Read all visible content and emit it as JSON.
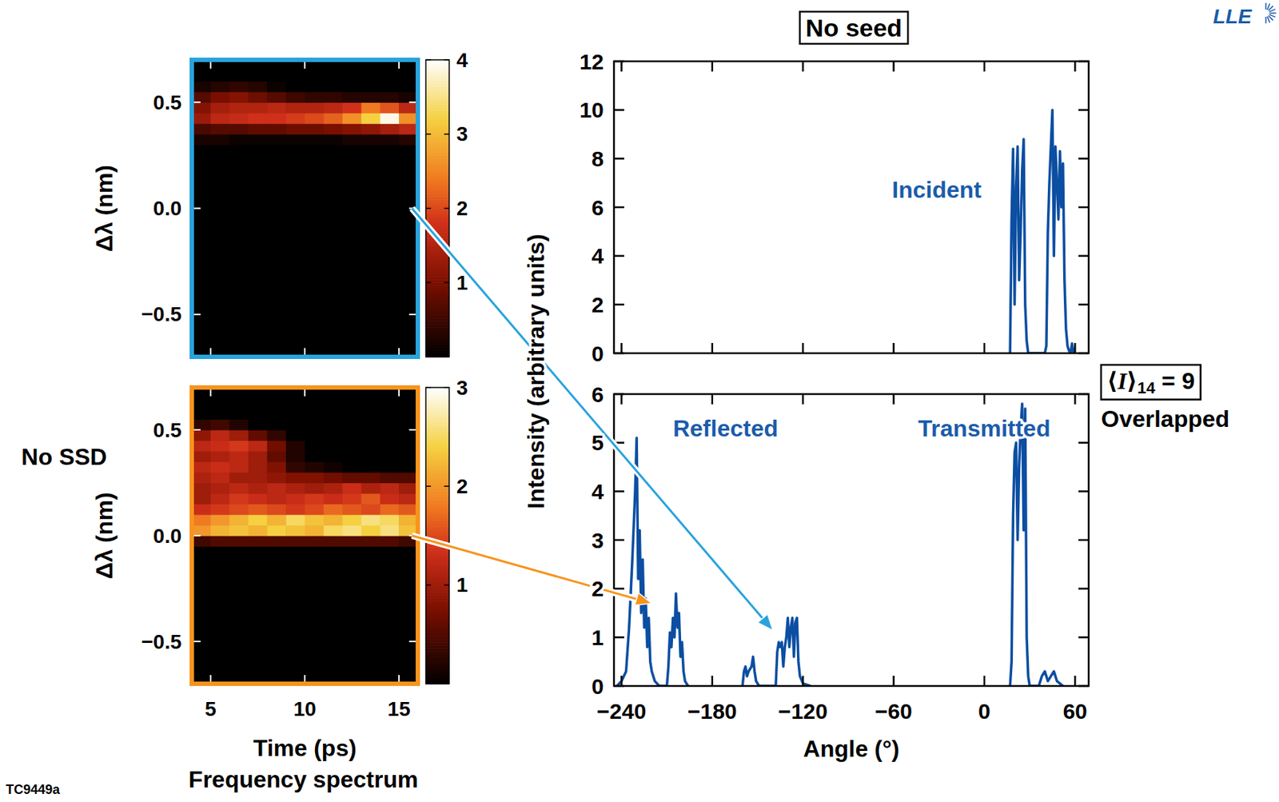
{
  "figure": {
    "title": "No seed",
    "logo": "LLE",
    "figure_id": "TC9449a",
    "row_label": "No SSD",
    "y_label": "Intensity (arbitrary units)",
    "caption": "Frequency spectrum",
    "average": {
      "open": "⟨",
      "symbol": "I",
      "close": "⟩",
      "subscript": "14",
      "value": " = 9"
    },
    "overlap_label": "Overlapped",
    "arrow_colors": [
      "#29a3dc",
      "#f7941d"
    ]
  },
  "chart_data": [
    {
      "type": "heatmap",
      "color": "#29a3dc",
      "tick_labels": "y",
      "ylabel": "Δλ (nm)",
      "x": [
        4,
        5,
        6,
        7,
        8,
        9,
        10,
        11,
        12,
        13,
        14,
        15,
        16
      ],
      "y": [
        -0.7,
        -0.65,
        -0.6,
        -0.55,
        -0.5,
        -0.45,
        -0.4,
        -0.35,
        -0.3,
        -0.25,
        -0.2,
        -0.15,
        -0.1,
        -0.05,
        0,
        0.05,
        0.1,
        0.15,
        0.2,
        0.25,
        0.3,
        0.35,
        0.4,
        0.45,
        0.5,
        0.55,
        0.6,
        0.65,
        0.7
      ],
      "xlim": [
        4,
        16
      ],
      "ylim": [
        -0.7,
        0.7
      ],
      "xticks": [
        5,
        10,
        15
      ],
      "yticks": [
        {
          "value": -0.5,
          "label": "−0.5"
        },
        {
          "value": 0,
          "label": "0.0"
        },
        {
          "value": 0.5,
          "label": "0.5"
        }
      ],
      "colorbar": {
        "range": [
          0,
          4
        ],
        "ticks": [
          1,
          2,
          3,
          4
        ]
      },
      "cells": [
        [
          0,
          0,
          0,
          0,
          0,
          0,
          0,
          0,
          0,
          0,
          0,
          0
        ],
        [
          0,
          0,
          0,
          0,
          0,
          0,
          0,
          0,
          0,
          0,
          0,
          0
        ],
        [
          0,
          0,
          0,
          0,
          0,
          0,
          0,
          0,
          0,
          0,
          0,
          0
        ],
        [
          0,
          0,
          0,
          0,
          0,
          0,
          0,
          0,
          0,
          0,
          0,
          0
        ],
        [
          0,
          0,
          0,
          0,
          0,
          0,
          0,
          0,
          0,
          0,
          0,
          0
        ],
        [
          0,
          0,
          0,
          0,
          0,
          0,
          0,
          0,
          0,
          0,
          0,
          0
        ],
        [
          0,
          0,
          0,
          0,
          0,
          0,
          0,
          0,
          0,
          0,
          0,
          0
        ],
        [
          0,
          0,
          0,
          0,
          0,
          0,
          0,
          0,
          0,
          0,
          0,
          0
        ],
        [
          0,
          0,
          0,
          0,
          0,
          0,
          0,
          0,
          0,
          0,
          0,
          0
        ],
        [
          0,
          0,
          0,
          0,
          0,
          0,
          0,
          0,
          0,
          0,
          0,
          0
        ],
        [
          0,
          0,
          0,
          0,
          0,
          0,
          0,
          0,
          0,
          0,
          0,
          0
        ],
        [
          0,
          0,
          0,
          0,
          0,
          0,
          0,
          0,
          0,
          0,
          0,
          0
        ],
        [
          0,
          0,
          0,
          0,
          0,
          0,
          0,
          0,
          0,
          0,
          0,
          0
        ],
        [
          0,
          0,
          0,
          0,
          0,
          0,
          0,
          0,
          0,
          0,
          0,
          0
        ],
        [
          0,
          0,
          0,
          0,
          0,
          0,
          0,
          0,
          0,
          0,
          0,
          0
        ],
        [
          0,
          0,
          0,
          0,
          0,
          0,
          0,
          0,
          0,
          0,
          0,
          0
        ],
        [
          0,
          0,
          0,
          0,
          0,
          0,
          0,
          0,
          0,
          0,
          0,
          0
        ],
        [
          0,
          0,
          0,
          0,
          0,
          0,
          0,
          0,
          0,
          0,
          0,
          0
        ],
        [
          0,
          0,
          0,
          0,
          0,
          0,
          0,
          0,
          0,
          0,
          0,
          0
        ],
        [
          0,
          0,
          0,
          0,
          0,
          0,
          0,
          0,
          0,
          0,
          0,
          0
        ],
        [
          0.2,
          0.2,
          0.1,
          0.1,
          0.1,
          0.1,
          0.1,
          0.1,
          0.2,
          0.2,
          0.2,
          0.3
        ],
        [
          0.6,
          0.7,
          0.7,
          0.8,
          0.8,
          0.9,
          0.9,
          1.0,
          1.1,
          1.2,
          1.4,
          1.6
        ],
        [
          1.3,
          1.6,
          1.7,
          1.8,
          1.8,
          1.9,
          2.0,
          2.2,
          2.6,
          3.2,
          3.9,
          2.6
        ],
        [
          1.1,
          1.4,
          1.5,
          1.5,
          1.6,
          1.5,
          1.5,
          1.6,
          1.8,
          2.4,
          2.1,
          1.6
        ],
        [
          0.7,
          1.0,
          1.1,
          0.9,
          0.7,
          0.5,
          0.4,
          0.4,
          0.3,
          0.3,
          0.3,
          0.2
        ],
        [
          0.2,
          0.3,
          0.4,
          0.3,
          0.1,
          0,
          0,
          0,
          0,
          0,
          0,
          0
        ],
        [
          0,
          0,
          0,
          0,
          0,
          0,
          0,
          0,
          0,
          0,
          0,
          0
        ],
        [
          0,
          0,
          0,
          0,
          0,
          0,
          0,
          0,
          0,
          0,
          0,
          0
        ]
      ]
    },
    {
      "type": "heatmap",
      "color": "#f7941d",
      "ylabel": "Δλ (nm)",
      "xlabel": "Time (ps)",
      "x": [
        4,
        5,
        6,
        7,
        8,
        9,
        10,
        11,
        12,
        13,
        14,
        15,
        16
      ],
      "y": [
        -0.7,
        -0.65,
        -0.6,
        -0.55,
        -0.5,
        -0.45,
        -0.4,
        -0.35,
        -0.3,
        -0.25,
        -0.2,
        -0.15,
        -0.1,
        -0.05,
        0,
        0.05,
        0.1,
        0.15,
        0.2,
        0.25,
        0.3,
        0.35,
        0.4,
        0.45,
        0.5,
        0.55,
        0.6,
        0.65,
        0.7
      ],
      "xlim": [
        4,
        16
      ],
      "ylim": [
        -0.7,
        0.7
      ],
      "xticks": [
        5,
        10,
        15
      ],
      "yticks": [
        {
          "value": -0.5,
          "label": "−0.5"
        },
        {
          "value": 0,
          "label": "0.0"
        },
        {
          "value": 0.5,
          "label": "0.5"
        }
      ],
      "colorbar": {
        "range": [
          0,
          3
        ],
        "ticks": [
          1,
          2,
          3
        ]
      },
      "cells": [
        [
          0,
          0,
          0,
          0,
          0,
          0,
          0,
          0,
          0,
          0,
          0,
          0
        ],
        [
          0,
          0,
          0,
          0,
          0,
          0,
          0,
          0,
          0,
          0,
          0,
          0
        ],
        [
          0,
          0,
          0,
          0,
          0,
          0,
          0,
          0,
          0,
          0,
          0,
          0
        ],
        [
          0,
          0,
          0,
          0,
          0,
          0,
          0,
          0,
          0,
          0,
          0,
          0
        ],
        [
          0,
          0,
          0,
          0,
          0,
          0,
          0,
          0,
          0,
          0,
          0,
          0
        ],
        [
          0,
          0,
          0,
          0,
          0,
          0,
          0,
          0,
          0,
          0,
          0,
          0
        ],
        [
          0,
          0,
          0,
          0,
          0,
          0,
          0,
          0,
          0,
          0,
          0,
          0
        ],
        [
          0,
          0,
          0,
          0,
          0,
          0,
          0,
          0,
          0,
          0,
          0,
          0
        ],
        [
          0,
          0,
          0,
          0,
          0,
          0,
          0,
          0,
          0,
          0,
          0,
          0
        ],
        [
          0,
          0,
          0,
          0,
          0,
          0,
          0,
          0,
          0,
          0,
          0,
          0
        ],
        [
          0,
          0,
          0,
          0,
          0,
          0,
          0,
          0,
          0,
          0,
          0,
          0
        ],
        [
          0,
          0,
          0,
          0,
          0,
          0,
          0,
          0,
          0,
          0,
          0,
          0
        ],
        [
          0,
          0,
          0,
          0,
          0,
          0,
          0,
          0,
          0,
          0,
          0,
          0
        ],
        [
          0.4,
          0.5,
          0.5,
          0.5,
          0.5,
          0.5,
          0.5,
          0.5,
          0.5,
          0.5,
          0.5,
          0.4
        ],
        [
          2.0,
          2.2,
          2.3,
          2.2,
          2.4,
          2.3,
          2.2,
          2.5,
          2.6,
          2.4,
          2.6,
          2.3
        ],
        [
          1.8,
          2.0,
          2.2,
          2.4,
          2.2,
          2.5,
          2.3,
          2.2,
          2.4,
          2.6,
          2.5,
          2.2
        ],
        [
          1.3,
          1.4,
          1.5,
          1.6,
          1.5,
          1.4,
          1.5,
          1.7,
          1.6,
          1.5,
          1.7,
          1.6
        ],
        [
          1.0,
          1.2,
          1.4,
          1.3,
          1.2,
          1.3,
          1.4,
          1.3,
          1.4,
          1.6,
          1.3,
          1.2
        ],
        [
          1.0,
          1.1,
          1.2,
          1.1,
          1.2,
          1.1,
          1.0,
          1.1,
          1.3,
          1.1,
          1.2,
          1.0
        ],
        [
          1.1,
          1.2,
          1.0,
          1.0,
          0.9,
          0.8,
          0.8,
          0.7,
          0.6,
          0.6,
          0.5,
          0.5
        ],
        [
          1.2,
          1.3,
          1.2,
          1.0,
          0.8,
          0.3,
          0.2,
          0.1,
          0,
          0,
          0,
          0
        ],
        [
          1.0,
          1.1,
          1.2,
          1.0,
          0.6,
          0.2,
          0,
          0,
          0,
          0,
          0,
          0
        ],
        [
          1.2,
          1.3,
          1.4,
          1.2,
          0.7,
          0.2,
          0,
          0,
          0,
          0,
          0,
          0
        ],
        [
          0.9,
          1.2,
          1.0,
          0.6,
          0.3,
          0,
          0,
          0,
          0,
          0,
          0,
          0
        ],
        [
          0.3,
          0.4,
          0.2,
          0,
          0,
          0,
          0,
          0,
          0,
          0,
          0,
          0
        ],
        [
          0,
          0,
          0,
          0,
          0,
          0,
          0,
          0,
          0,
          0,
          0,
          0
        ],
        [
          0,
          0,
          0,
          0,
          0,
          0,
          0,
          0,
          0,
          0,
          0,
          0
        ],
        [
          0,
          0,
          0,
          0,
          0,
          0,
          0,
          0,
          0,
          0,
          0,
          0
        ]
      ]
    },
    {
      "type": "line",
      "color": "#0b4ea2",
      "tick_labels": "y",
      "annotations": [
        "Incident"
      ],
      "xlim": [
        -245,
        69
      ],
      "ylim": [
        0,
        12
      ],
      "xticks": [
        {
          "value": -240,
          "label": "−240"
        },
        {
          "value": -180,
          "label": "−180"
        },
        {
          "value": -120,
          "label": "−120"
        },
        {
          "value": -60,
          "label": "−60"
        },
        0,
        60
      ],
      "yticks": [
        0,
        2,
        4,
        6,
        8,
        10,
        12
      ],
      "x": [
        17,
        18,
        19,
        20,
        21,
        22,
        23,
        24,
        25,
        26,
        27,
        28,
        29,
        40,
        41,
        42,
        43,
        44,
        45,
        46,
        47,
        48,
        49,
        50,
        51,
        52,
        53,
        54,
        55,
        56,
        57,
        58,
        59
      ],
      "values": [
        0,
        5.5,
        8.4,
        2,
        6.8,
        8.5,
        3,
        5,
        7.5,
        8.8,
        2,
        0.5,
        0,
        0,
        0.3,
        5,
        7,
        8.5,
        10,
        4,
        8.5,
        7,
        5.5,
        8.3,
        6,
        7.8,
        3,
        1,
        0.3,
        0.1,
        0,
        0.4,
        0
      ]
    },
    {
      "type": "line",
      "color": "#0b4ea2",
      "xlabel": "Angle (°)",
      "annotations": [
        "Reflected",
        "Transmitted"
      ],
      "xlim": [
        -245,
        69
      ],
      "ylim": [
        0,
        6
      ],
      "xticks": [
        {
          "value": -240,
          "label": "−240"
        },
        {
          "value": -180,
          "label": "−180"
        },
        {
          "value": -120,
          "label": "−120"
        },
        {
          "value": -60,
          "label": "−60"
        },
        0,
        60
      ],
      "yticks": [
        0,
        1,
        2,
        3,
        4,
        5,
        6
      ],
      "x": [
        -243,
        -240,
        -237,
        -235,
        -233,
        -231,
        -230,
        -229,
        -228,
        -227,
        -226,
        -225,
        -224,
        -223,
        -222,
        -221,
        -220,
        -218,
        -215,
        -210,
        -209,
        -208,
        -207,
        -206,
        -205,
        -204,
        -203,
        -202,
        -201,
        -200,
        -199,
        -198,
        -196,
        -178,
        -160,
        -159,
        -158,
        -157,
        -156,
        -154,
        -153,
        -152,
        -151,
        -149,
        -138,
        -137,
        -136,
        -135,
        -134,
        -133,
        -132,
        -131,
        -130,
        -129,
        -128,
        -127,
        -126,
        -125,
        -124,
        -123,
        -122,
        -120,
        -115,
        -50,
        17,
        18,
        19,
        20,
        21,
        22,
        23,
        24,
        25,
        26,
        27,
        28,
        29,
        30,
        36,
        38,
        40,
        42,
        44,
        46,
        48,
        50,
        52
      ],
      "values": [
        0,
        0.1,
        0.3,
        1.2,
        2.5,
        4,
        5.1,
        2.2,
        3.2,
        1.5,
        2.6,
        1.2,
        1.8,
        0.8,
        1.4,
        0.5,
        0.3,
        0.1,
        0,
        0,
        0.4,
        1.1,
        0.8,
        1.4,
        1,
        1.9,
        1.2,
        1.5,
        0.6,
        0.9,
        0.3,
        0.1,
        0,
        null,
        0,
        0.3,
        0.4,
        0.2,
        0.3,
        0.4,
        0.6,
        0.3,
        0.1,
        0,
        0,
        0.7,
        0.9,
        0.8,
        0.9,
        0.4,
        0.8,
        1,
        1.4,
        0.8,
        1.2,
        1.4,
        0.6,
        1.3,
        1.4,
        0.5,
        0.2,
        0.05,
        0,
        null,
        0,
        0.5,
        3.5,
        4.8,
        5,
        3,
        4.5,
        5.3,
        5.8,
        3.2,
        5.7,
        1,
        0.2,
        0,
        0,
        0.2,
        0.3,
        0.1,
        0.2,
        0.3,
        0.1,
        0.05,
        0
      ]
    }
  ]
}
